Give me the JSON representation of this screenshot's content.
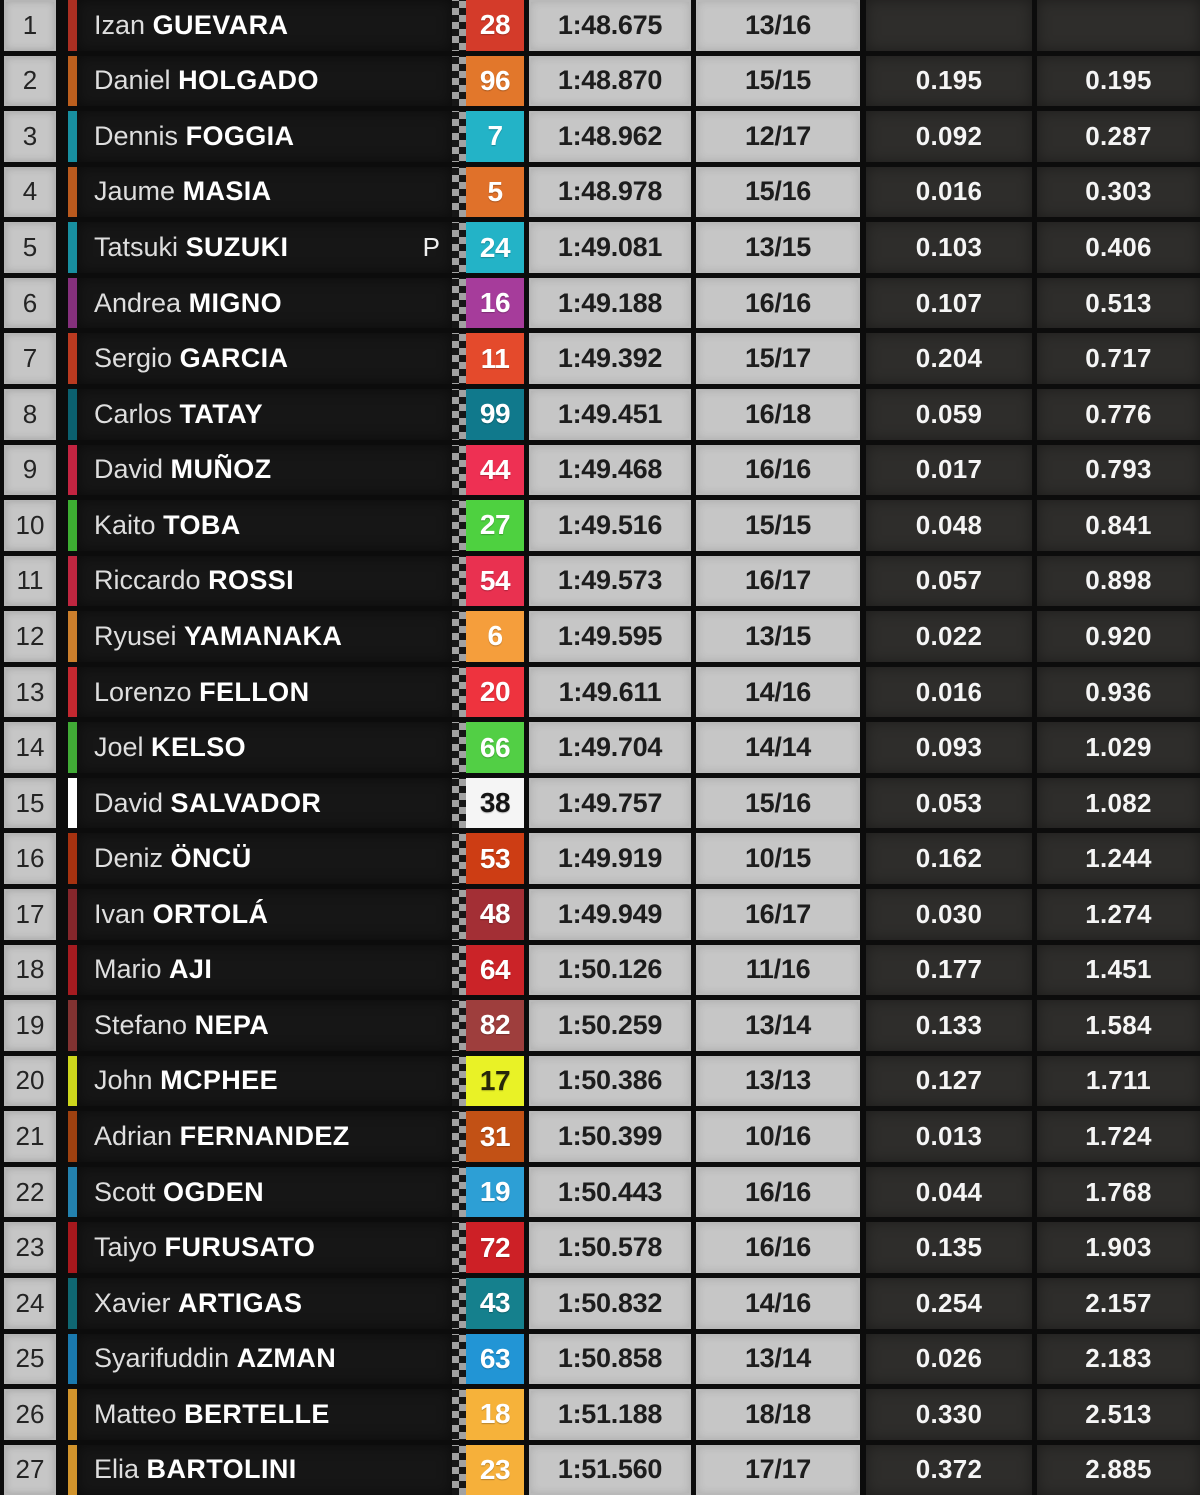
{
  "palette": {
    "background": "#0c0c0c",
    "light_cell": "#c6c6c6",
    "dark_cell": "#2e2d2b",
    "name_cell": "#161616",
    "checker_gray": "#a2a2a2"
  },
  "board": {
    "rows": [
      {
        "pos": "1",
        "first": "Izan",
        "last": "GUEVARA",
        "pit": "",
        "num": "28",
        "badge": "#d43b2a",
        "strip": "#ab2f22",
        "num_color": "#ffffff",
        "time": "1:48.675",
        "laps": "13/16",
        "gap_prev": "",
        "gap_first": ""
      },
      {
        "pos": "2",
        "first": "Daniel",
        "last": "HOLGADO",
        "pit": "",
        "num": "96",
        "badge": "#e2772b",
        "strip": "#bc5f1e",
        "num_color": "#ffffff",
        "time": "1:48.870",
        "laps": "15/15",
        "gap_prev": "0.195",
        "gap_first": "0.195"
      },
      {
        "pos": "3",
        "first": "Dennis",
        "last": "FOGGIA",
        "pit": "",
        "num": "7",
        "badge": "#23b3c7",
        "strip": "#188fa0",
        "num_color": "#ffffff",
        "time": "1:48.962",
        "laps": "12/17",
        "gap_prev": "0.092",
        "gap_first": "0.287"
      },
      {
        "pos": "4",
        "first": "Jaume",
        "last": "MASIA",
        "pit": "",
        "num": "5",
        "badge": "#e0712a",
        "strip": "#ba5a1e",
        "num_color": "#ffffff",
        "time": "1:48.978",
        "laps": "15/16",
        "gap_prev": "0.016",
        "gap_first": "0.303"
      },
      {
        "pos": "5",
        "first": "Tatsuki",
        "last": "SUZUKI",
        "pit": "P",
        "num": "24",
        "badge": "#23b3c7",
        "strip": "#188fa0",
        "num_color": "#ffffff",
        "time": "1:49.081",
        "laps": "13/15",
        "gap_prev": "0.103",
        "gap_first": "0.406"
      },
      {
        "pos": "6",
        "first": "Andrea",
        "last": "MIGNO",
        "pit": "",
        "num": "16",
        "badge": "#a63c9b",
        "strip": "#85307c",
        "num_color": "#ffffff",
        "time": "1:49.188",
        "laps": "16/16",
        "gap_prev": "0.107",
        "gap_first": "0.513"
      },
      {
        "pos": "7",
        "first": "Sergio",
        "last": "GARCIA",
        "pit": "",
        "num": "11",
        "badge": "#e44a2c",
        "strip": "#ba3a20",
        "num_color": "#ffffff",
        "time": "1:49.392",
        "laps": "15/17",
        "gap_prev": "0.204",
        "gap_first": "0.717"
      },
      {
        "pos": "8",
        "first": "Carlos",
        "last": "TATAY",
        "pit": "",
        "num": "99",
        "badge": "#10798c",
        "strip": "#0b606f",
        "num_color": "#ffffff",
        "time": "1:49.451",
        "laps": "16/18",
        "gap_prev": "0.059",
        "gap_first": "0.776"
      },
      {
        "pos": "9",
        "first": "David",
        "last": "MUÑOZ",
        "pit": "",
        "num": "44",
        "badge": "#ee3053",
        "strip": "#c32441",
        "num_color": "#ffffff",
        "time": "1:49.468",
        "laps": "16/16",
        "gap_prev": "0.017",
        "gap_first": "0.793"
      },
      {
        "pos": "10",
        "first": "Kaito",
        "last": "TOBA",
        "pit": "",
        "num": "27",
        "badge": "#4ed140",
        "strip": "#3dae32",
        "num_color": "#ffffff",
        "time": "1:49.516",
        "laps": "15/15",
        "gap_prev": "0.048",
        "gap_first": "0.841"
      },
      {
        "pos": "11",
        "first": "Riccardo",
        "last": "ROSSI",
        "pit": "",
        "num": "54",
        "badge": "#e93150",
        "strip": "#bf2640",
        "num_color": "#ffffff",
        "time": "1:49.573",
        "laps": "16/17",
        "gap_prev": "0.057",
        "gap_first": "0.898"
      },
      {
        "pos": "12",
        "first": "Ryusei",
        "last": "YAMANAKA",
        "pit": "",
        "num": "6",
        "badge": "#f59e3c",
        "strip": "#cc7f2c",
        "num_color": "#ffffff",
        "time": "1:49.595",
        "laps": "13/15",
        "gap_prev": "0.022",
        "gap_first": "0.920"
      },
      {
        "pos": "13",
        "first": "Lorenzo",
        "last": "FELLON",
        "pit": "",
        "num": "20",
        "badge": "#ee333e",
        "strip": "#c42830",
        "num_color": "#ffffff",
        "time": "1:49.611",
        "laps": "14/16",
        "gap_prev": "0.016",
        "gap_first": "0.936"
      },
      {
        "pos": "14",
        "first": "Joel",
        "last": "KELSO",
        "pit": "",
        "num": "66",
        "badge": "#52cf45",
        "strip": "#41ab36",
        "num_color": "#ffffff",
        "time": "1:49.704",
        "laps": "14/14",
        "gap_prev": "0.093",
        "gap_first": "1.029"
      },
      {
        "pos": "15",
        "first": "David",
        "last": "SALVADOR",
        "pit": "",
        "num": "38",
        "badge": "#f5f5f5",
        "strip": "#ffffff",
        "num_color": "#141414",
        "time": "1:49.757",
        "laps": "15/16",
        "gap_prev": "0.053",
        "gap_first": "1.082"
      },
      {
        "pos": "16",
        "first": "Deniz",
        "last": "ÖNCÜ",
        "pit": "",
        "num": "53",
        "badge": "#cd3d14",
        "strip": "#a63210",
        "num_color": "#ffffff",
        "time": "1:49.919",
        "laps": "10/15",
        "gap_prev": "0.162",
        "gap_first": "1.244"
      },
      {
        "pos": "17",
        "first": "Ivan",
        "last": "ORTOLÁ",
        "pit": "",
        "num": "48",
        "badge": "#a32f35",
        "strip": "#85262b",
        "num_color": "#ffffff",
        "time": "1:49.949",
        "laps": "16/17",
        "gap_prev": "0.030",
        "gap_first": "1.274"
      },
      {
        "pos": "18",
        "first": "Mario",
        "last": "AJI",
        "pit": "",
        "num": "64",
        "badge": "#cb2328",
        "strip": "#a51b20",
        "num_color": "#ffffff",
        "time": "1:50.126",
        "laps": "11/16",
        "gap_prev": "0.177",
        "gap_first": "1.451"
      },
      {
        "pos": "19",
        "first": "Stefano",
        "last": "NEPA",
        "pit": "",
        "num": "82",
        "badge": "#9e3e3d",
        "strip": "#813231",
        "num_color": "#ffffff",
        "time": "1:50.259",
        "laps": "13/14",
        "gap_prev": "0.133",
        "gap_first": "1.584"
      },
      {
        "pos": "20",
        "first": "John",
        "last": "MCPHEE",
        "pit": "",
        "num": "17",
        "badge": "#e9f226",
        "strip": "#cdd61c",
        "num_color": "#27270a",
        "time": "1:50.386",
        "laps": "13/13",
        "gap_prev": "0.127",
        "gap_first": "1.711"
      },
      {
        "pos": "21",
        "first": "Adrian",
        "last": "FERNANDEZ",
        "pit": "",
        "num": "31",
        "badge": "#c25115",
        "strip": "#9e4110",
        "num_color": "#ffffff",
        "time": "1:50.399",
        "laps": "10/16",
        "gap_prev": "0.013",
        "gap_first": "1.724"
      },
      {
        "pos": "22",
        "first": "Scott",
        "last": "OGDEN",
        "pit": "",
        "num": "19",
        "badge": "#2d9fd5",
        "strip": "#2381ae",
        "num_color": "#ffffff",
        "time": "1:50.443",
        "laps": "16/16",
        "gap_prev": "0.044",
        "gap_first": "1.768"
      },
      {
        "pos": "23",
        "first": "Taiyo",
        "last": "FURUSATO",
        "pit": "",
        "num": "72",
        "badge": "#cd2026",
        "strip": "#a7181d",
        "num_color": "#ffffff",
        "time": "1:50.578",
        "laps": "16/16",
        "gap_prev": "0.135",
        "gap_first": "1.903"
      },
      {
        "pos": "24",
        "first": "Xavier",
        "last": "ARTIGAS",
        "pit": "",
        "num": "43",
        "badge": "#15808d",
        "strip": "#0f6772",
        "num_color": "#ffffff",
        "time": "1:50.832",
        "laps": "14/16",
        "gap_prev": "0.254",
        "gap_first": "2.157"
      },
      {
        "pos": "25",
        "first": "Syarifuddin",
        "last": "AZMAN",
        "pit": "",
        "num": "63",
        "badge": "#2295d5",
        "strip": "#1a79ae",
        "num_color": "#ffffff",
        "time": "1:50.858",
        "laps": "13/14",
        "gap_prev": "0.026",
        "gap_first": "2.183"
      },
      {
        "pos": "26",
        "first": "Matteo",
        "last": "BERTELLE",
        "pit": "",
        "num": "18",
        "badge": "#f6b23a",
        "strip": "#d2942c",
        "num_color": "#ffffff",
        "time": "1:51.188",
        "laps": "18/18",
        "gap_prev": "0.330",
        "gap_first": "2.513"
      },
      {
        "pos": "27",
        "first": "Elia",
        "last": "BARTOLINI",
        "pit": "",
        "num": "23",
        "badge": "#f6b03a",
        "strip": "#d2942c",
        "num_color": "#ffffff",
        "time": "1:51.560",
        "laps": "17/17",
        "gap_prev": "0.372",
        "gap_first": "2.885"
      }
    ]
  }
}
